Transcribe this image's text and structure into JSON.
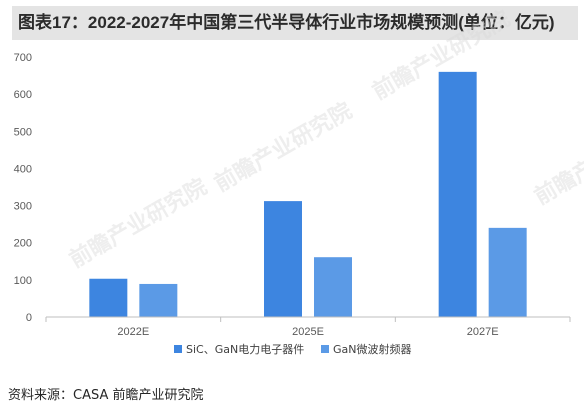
{
  "title": "图表17：2022-2027年中国第三代半导体行业市场规模预测(单位：亿元)",
  "source": "资料来源：CASA 前瞻产业研究院",
  "watermark": "前瞻产业研究院",
  "colors": {
    "series1": "#3d85e0",
    "series2": "#5b9ae6",
    "axis": "#bfbfbf"
  },
  "chart_data": {
    "type": "bar",
    "title": "图表17：2022-2027年中国第三代半导体行业市场规模预测(单位：亿元)",
    "categories": [
      "2022E",
      "2025E",
      "2027E"
    ],
    "series": [
      {
        "name": "SiC、GaN电力电子器件",
        "values": [
          103,
          312,
          660
        ]
      },
      {
        "name": "GaN微波射频器",
        "values": [
          89,
          161,
          240
        ]
      }
    ],
    "yticks": [
      0,
      100,
      200,
      300,
      400,
      500,
      600,
      700
    ],
    "ylim": [
      0,
      700
    ],
    "xlabel": "",
    "ylabel": "",
    "grid": false,
    "legend": "bottom"
  }
}
